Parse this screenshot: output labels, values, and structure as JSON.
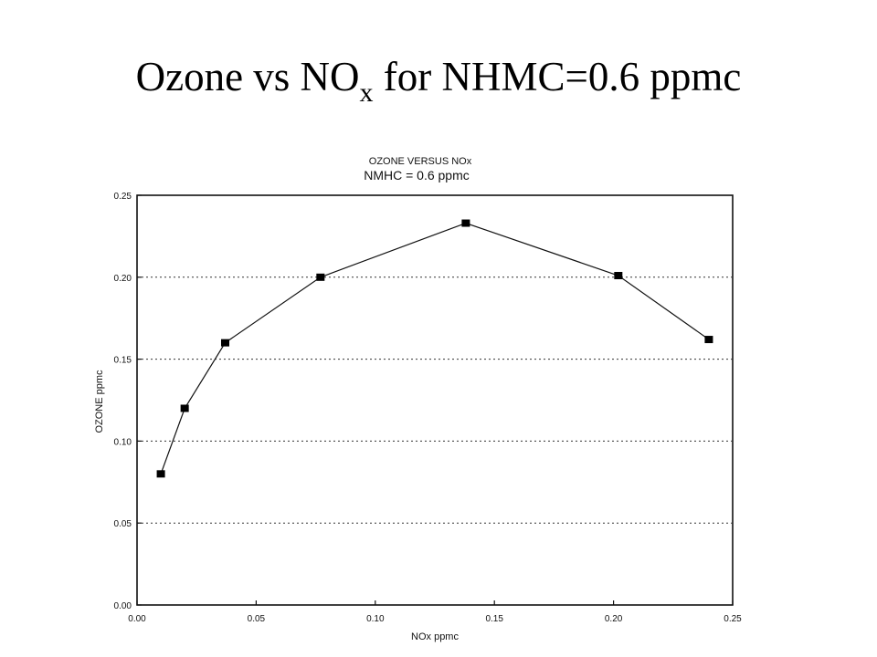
{
  "slide": {
    "title_main": "Ozone vs NO",
    "title_sub": "x",
    "title_rest": " for NHMC=0.6 ppmc"
  },
  "chart_data": {
    "type": "line",
    "title": "OZONE VERSUS NOx",
    "subtitle": "NMHC = 0.6 ppmc",
    "xlabel": "NOx ppmc",
    "ylabel": "OZONE ppmc",
    "xlim": [
      0,
      0.25
    ],
    "ylim": [
      0,
      0.25
    ],
    "x_ticks": [
      "0.00",
      "0.05",
      "0.10",
      "0.15",
      "0.20",
      "0.25"
    ],
    "y_ticks": [
      "0.00",
      "0.05",
      "0.10",
      "0.15",
      "0.20",
      "0.25"
    ],
    "horizontal_grid": true,
    "grid_style": "dotted",
    "marker": "square",
    "series": [
      {
        "x": [
          0.01,
          0.02,
          0.037,
          0.077,
          0.138,
          0.202,
          0.24
        ],
        "y": [
          0.08,
          0.12,
          0.16,
          0.2,
          0.233,
          0.201,
          0.162
        ]
      }
    ]
  }
}
